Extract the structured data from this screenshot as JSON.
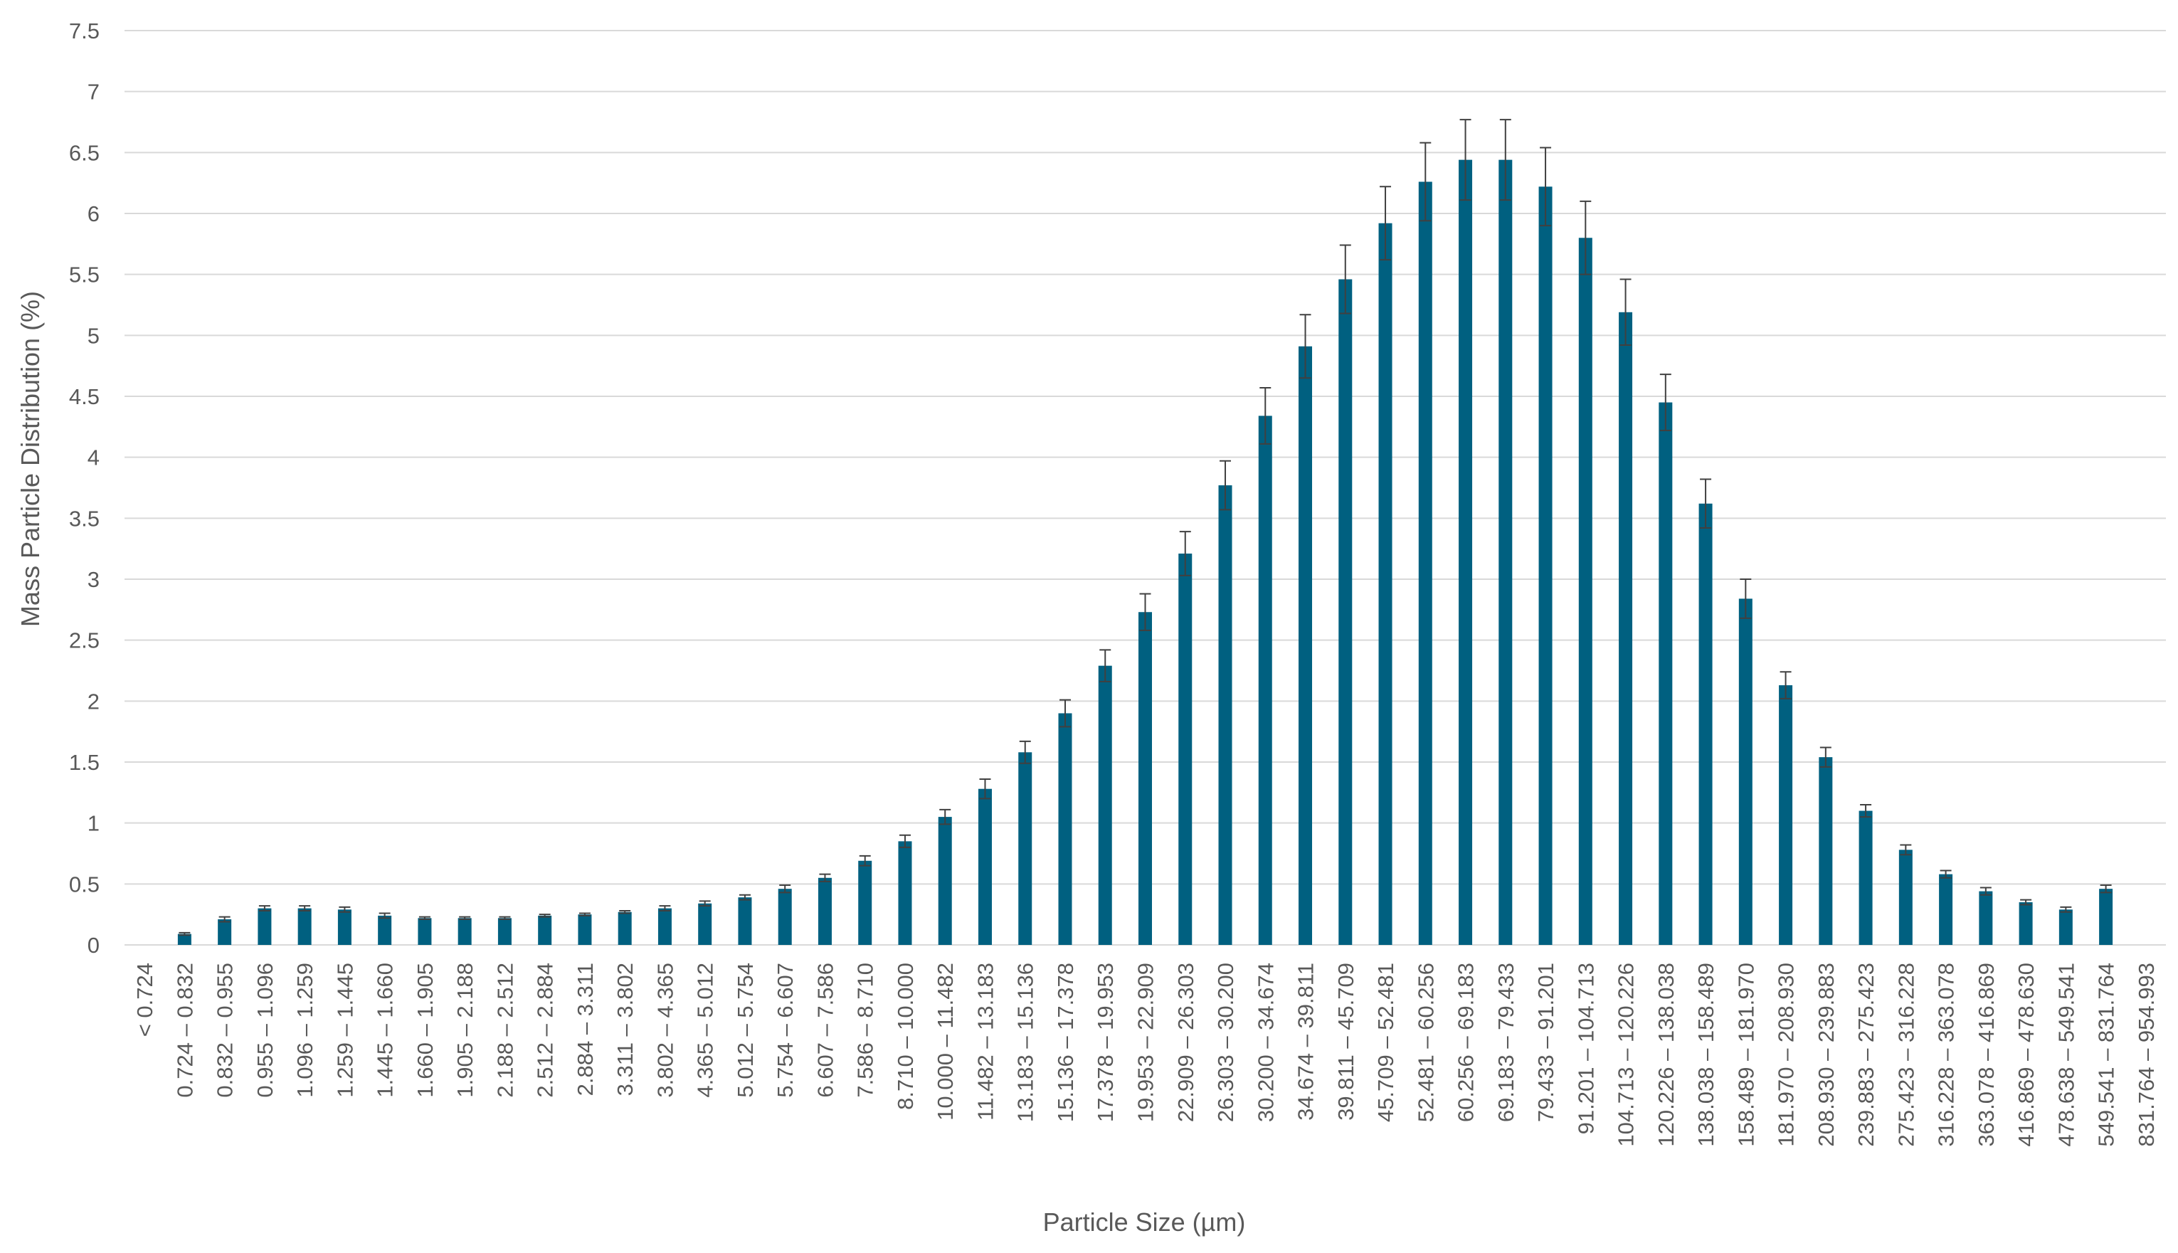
{
  "chart_data": {
    "type": "bar",
    "title": "",
    "xlabel": "Particle Size (µm)",
    "ylabel": "Mass Particle Distribution (%)",
    "ylim": [
      0,
      7.5
    ],
    "ytick_step": 0.5,
    "yticks": [
      "0",
      "0.5",
      "1",
      "1.5",
      "2",
      "2.5",
      "3",
      "3.5",
      "4",
      "4.5",
      "5",
      "5.5",
      "6",
      "6.5",
      "7",
      "7.5"
    ],
    "grid": "horizontal",
    "legend": "none",
    "bar_color": "#006080",
    "error_bar_color": "#404040",
    "categories": [
      "< 0.724",
      "0.724 – 0.832",
      "0.832 – 0.955",
      "0.955 – 1.096",
      "1.096 – 1.259",
      "1.259 – 1.445",
      "1.445 – 1.660",
      "1.660 – 1.905",
      "1.905 – 2.188",
      "2.188 – 2.512",
      "2.512 – 2.884",
      "2.884 – 3.311",
      "3.311 – 3.802",
      "3.802 – 4.365",
      "4.365 – 5.012",
      "5.012 – 5.754",
      "5.754 – 6.607",
      "6.607 – 7.586",
      "7.586 – 8.710",
      "8.710 – 10.000",
      "10.000 – 11.482",
      "11.482 – 13.183",
      "13.183 – 15.136",
      "15.136 – 17.378",
      "17.378 – 19.953",
      "19.953 – 22.909",
      "22.909 – 26.303",
      "26.303 – 30.200",
      "30.200 – 34.674",
      "34.674 – 39.811",
      "39.811 – 45.709",
      "45.709 – 52.481",
      "52.481 – 60.256",
      "60.256 – 69.183",
      "69.183 – 79.433",
      "79.433 – 91.201",
      "91.201 – 104.713",
      "104.713 – 120.226",
      "120.226 – 138.038",
      "138.038 – 158.489",
      "158.489 – 181.970",
      "181.970 – 208.930",
      "208.930 – 239.883",
      "239.883 – 275.423",
      "275.423 – 316.228",
      "316.228 – 363.078",
      "363.078 – 416.869",
      "416.869 – 478.630",
      "478.638 – 549.541",
      "549.541 – 831.764",
      "831.764 – 954.993"
    ],
    "values": [
      0,
      0.09,
      0.21,
      0.3,
      0.3,
      0.29,
      0.24,
      0.22,
      0.22,
      0.22,
      0.24,
      0.25,
      0.27,
      0.3,
      0.34,
      0.39,
      0.46,
      0.55,
      0.69,
      0.85,
      1.05,
      1.28,
      1.58,
      1.9,
      2.29,
      2.73,
      3.21,
      3.77,
      4.34,
      4.91,
      5.46,
      5.92,
      6.26,
      6.44,
      6.44,
      6.22,
      5.8,
      5.19,
      4.45,
      3.62,
      2.84,
      2.13,
      1.54,
      1.1,
      0.78,
      0.58,
      0.44,
      0.35,
      0.29,
      0.46,
      0
    ],
    "errors": [
      0,
      0.01,
      0.02,
      0.02,
      0.02,
      0.02,
      0.02,
      0.01,
      0.01,
      0.01,
      0.01,
      0.01,
      0.01,
      0.02,
      0.02,
      0.02,
      0.03,
      0.03,
      0.04,
      0.05,
      0.06,
      0.08,
      0.09,
      0.11,
      0.13,
      0.15,
      0.18,
      0.2,
      0.23,
      0.26,
      0.28,
      0.3,
      0.32,
      0.33,
      0.33,
      0.32,
      0.3,
      0.27,
      0.23,
      0.2,
      0.16,
      0.11,
      0.08,
      0.05,
      0.04,
      0.03,
      0.03,
      0.02,
      0.02,
      0.03,
      0
    ]
  }
}
